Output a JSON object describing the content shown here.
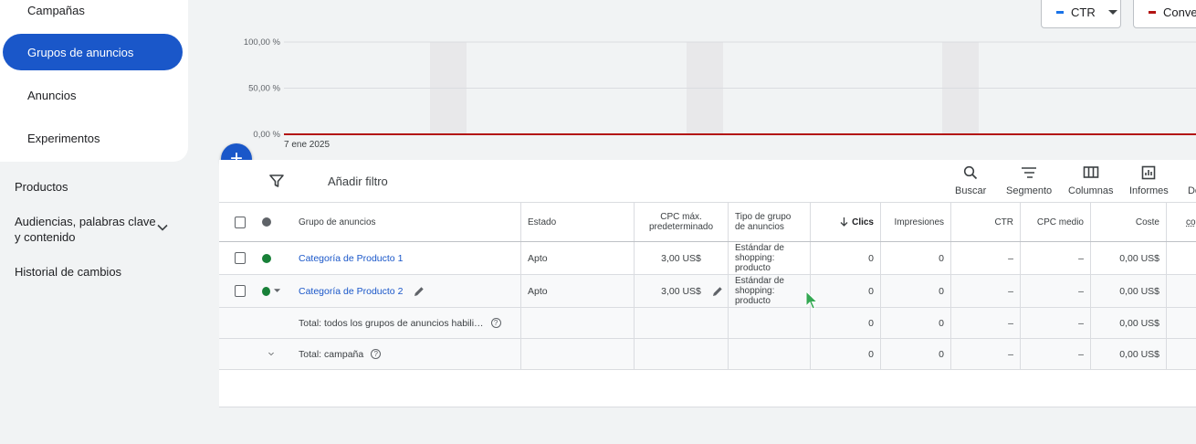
{
  "sidebar": {
    "items": [
      {
        "label": "Campañas"
      },
      {
        "label": "Grupos de anuncios",
        "active": true
      },
      {
        "label": "Anuncios"
      },
      {
        "label": "Experimentos"
      }
    ],
    "lower": [
      {
        "label": "Productos"
      },
      {
        "label": "Audiencias, palabras clave y contenido"
      },
      {
        "label": "Historial de cambios"
      }
    ]
  },
  "chart_controls": {
    "metric1": {
      "label": "CTR",
      "color": "#1a73e8"
    },
    "metric2": {
      "label": "Conver",
      "color": "#b31412"
    }
  },
  "chart_data": {
    "type": "line",
    "y_ticks": [
      "100,00 %",
      "50,00 %",
      "0,00 %"
    ],
    "ylim": [
      0,
      100
    ],
    "x_start_label": "7 ene 2025",
    "series": [
      {
        "name": "CTR",
        "values": [
          0,
          0,
          0,
          0,
          0,
          0,
          0,
          0,
          0,
          0
        ]
      }
    ],
    "line_color": "#b31412",
    "highlight_band_color": "#e8e8ea"
  },
  "toolbar": {
    "filter_label": "Añadir filtro",
    "tools": [
      {
        "label": "Buscar",
        "icon": "search-icon"
      },
      {
        "label": "Segmento",
        "icon": "segment-icon"
      },
      {
        "label": "Columnas",
        "icon": "columns-icon"
      },
      {
        "label": "Informes",
        "icon": "reports-icon"
      },
      {
        "label": "De",
        "icon": "more-icon"
      }
    ]
  },
  "table": {
    "headers": {
      "group": "Grupo de anuncios",
      "status": "Estado",
      "cpc_max": "CPC máx. predeterminado",
      "type": "Tipo de grupo de anuncios",
      "clicks": "Clics",
      "impressions": "Impresiones",
      "ctr": "CTR",
      "cpc_avg": "CPC medio",
      "cost": "Coste",
      "extra": "co"
    },
    "rows": [
      {
        "name": "Categoría de Producto 1",
        "status": "Apto",
        "cpc_max": "3,00 US$",
        "type": "Estándar de shopping: producto",
        "clicks": "0",
        "impressions": "0",
        "ctr": "–",
        "cpc_avg": "–",
        "cost": "0,00 US$",
        "status_color": "#188038"
      },
      {
        "name": "Categoría de Producto 2",
        "status": "Apto",
        "cpc_max": "3,00 US$",
        "type": "Estándar de shopping: producto",
        "clicks": "0",
        "impressions": "0",
        "ctr": "–",
        "cpc_avg": "–",
        "cost": "0,00 US$",
        "status_color": "#188038"
      }
    ],
    "totals": [
      {
        "label": "Total: todos los grupos de anuncios habili…",
        "clicks": "0",
        "impressions": "0",
        "ctr": "–",
        "cpc_avg": "–",
        "cost": "0,00 US$"
      },
      {
        "label": "Total: campaña",
        "clicks": "0",
        "impressions": "0",
        "ctr": "–",
        "cpc_avg": "–",
        "cost": "0,00 US$"
      }
    ]
  }
}
